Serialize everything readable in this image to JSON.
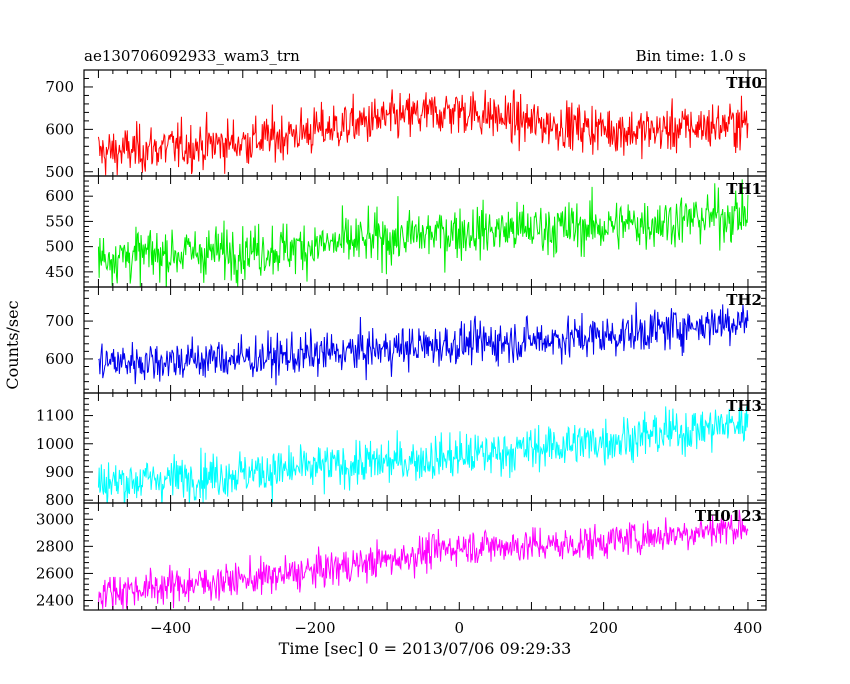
{
  "header": {
    "title": "ae130706092933_wam3_trn",
    "bin_time": "Bin time: 1.0 s"
  },
  "chart_data": {
    "type": "line",
    "title": "ae130706092933_wam3_trn",
    "subtitle": "Bin time: 1.0 s",
    "xlabel": "Time [sec] 0 = 2013/07/06 09:29:33",
    "ylabel": "Counts/sec",
    "xlim": [
      -520,
      425
    ],
    "x_ticks": [
      -400,
      -200,
      0,
      200,
      400
    ],
    "x_tick_labels": [
      "−400",
      "−200",
      "0",
      "200",
      "400"
    ],
    "x_start": -500,
    "x_end": 400,
    "x_step": 1,
    "panels": [
      {
        "name": "TH0",
        "color": "#ff0000",
        "ylim": [
          490,
          740
        ],
        "y_ticks": [
          500,
          600,
          700
        ],
        "trend": [
          [
            -500,
            545
          ],
          [
            -300,
            570
          ],
          [
            -100,
            625
          ],
          [
            0,
            645
          ],
          [
            100,
            615
          ],
          [
            250,
            595
          ],
          [
            400,
            615
          ]
        ],
        "noise": 28
      },
      {
        "name": "TH1",
        "color": "#00ee00",
        "ylim": [
          420,
          640
        ],
        "y_ticks": [
          450,
          500,
          550,
          600
        ],
        "trend": [
          [
            -500,
            480
          ],
          [
            -250,
            495
          ],
          [
            0,
            530
          ],
          [
            200,
            540
          ],
          [
            400,
            565
          ]
        ],
        "noise": 26
      },
      {
        "name": "TH2",
        "color": "#0000ee",
        "ylim": [
          510,
          790
        ],
        "y_ticks": [
          600,
          700
        ],
        "trend": [
          [
            -500,
            590
          ],
          [
            -250,
            605
          ],
          [
            0,
            640
          ],
          [
            200,
            660
          ],
          [
            400,
            705
          ]
        ],
        "noise": 28
      },
      {
        "name": "TH3",
        "color": "#00ffff",
        "ylim": [
          790,
          1180
        ],
        "y_ticks": [
          800,
          900,
          1000,
          1100
        ],
        "trend": [
          [
            -500,
            860
          ],
          [
            -250,
            905
          ],
          [
            0,
            955
          ],
          [
            200,
            1010
          ],
          [
            400,
            1075
          ]
        ],
        "noise": 40
      },
      {
        "name": "TH0123",
        "color": "#ff00ff",
        "ylim": [
          2330,
          3120
        ],
        "y_ticks": [
          2400,
          2600,
          2800,
          3000
        ],
        "trend": [
          [
            -500,
            2460
          ],
          [
            -250,
            2580
          ],
          [
            -100,
            2700
          ],
          [
            0,
            2800
          ],
          [
            150,
            2810
          ],
          [
            400,
            2950
          ]
        ],
        "noise": 65
      }
    ]
  }
}
